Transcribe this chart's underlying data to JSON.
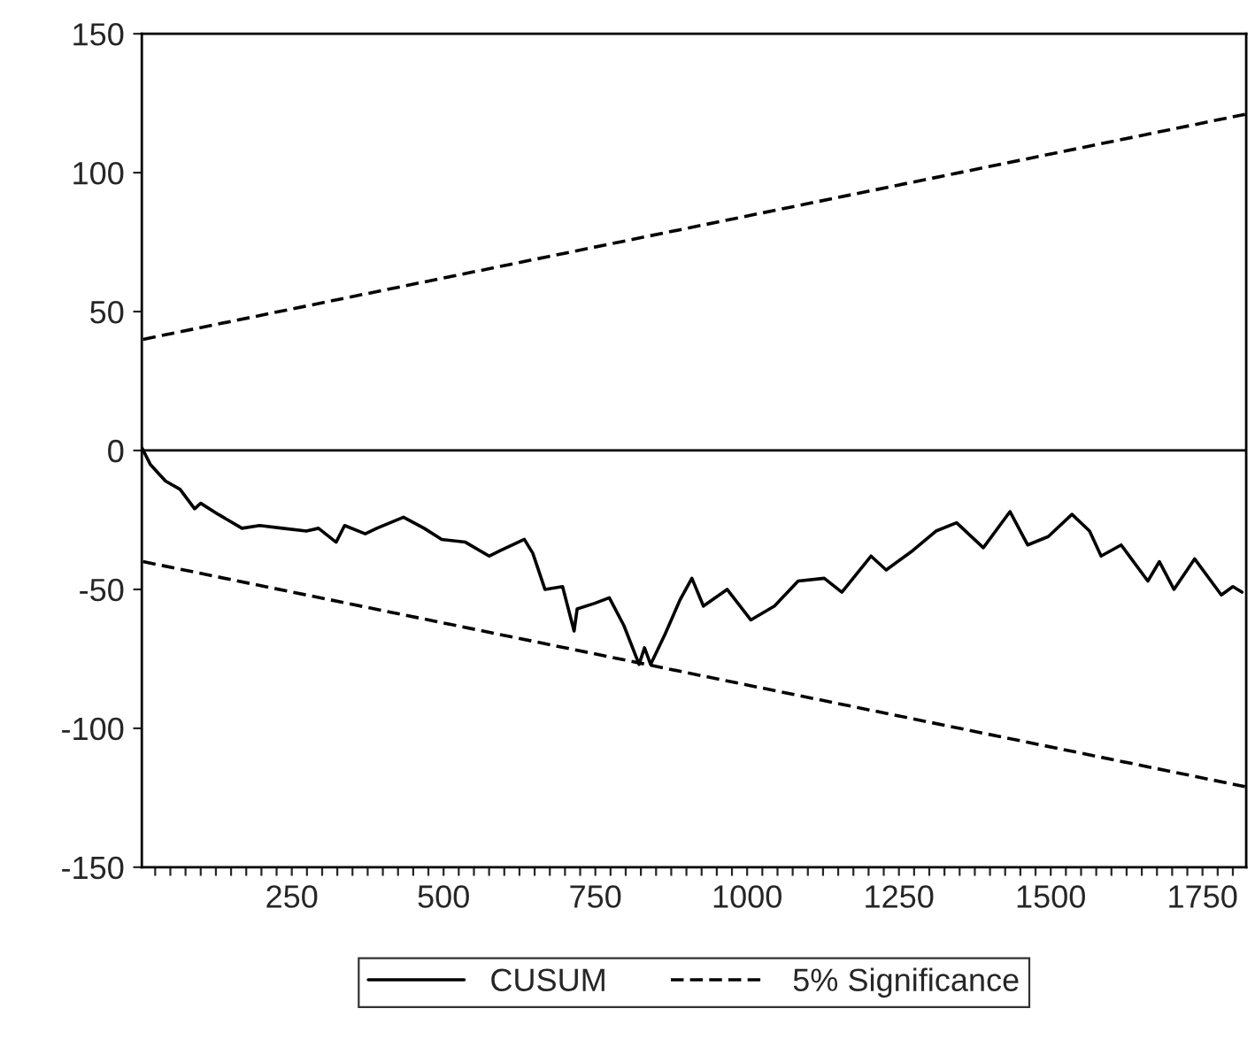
{
  "chart_data": {
    "type": "line",
    "xlim": [
      3,
      1822
    ],
    "ylim": [
      -150,
      150
    ],
    "yticks": [
      -150,
      -100,
      -50,
      0,
      50,
      100,
      150
    ],
    "xticks": [
      {
        "value": 25,
        "label": null
      },
      {
        "value": 50,
        "label": null
      },
      {
        "value": 75,
        "label": null
      },
      {
        "value": 100,
        "label": null
      },
      {
        "value": 125,
        "label": null
      },
      {
        "value": 150,
        "label": null
      },
      {
        "value": 175,
        "label": null
      },
      {
        "value": 200,
        "label": null
      },
      {
        "value": 225,
        "label": null
      },
      250,
      {
        "value": 275,
        "label": null
      },
      {
        "value": 300,
        "label": null
      },
      {
        "value": 325,
        "label": null
      },
      {
        "value": 350,
        "label": null
      },
      {
        "value": 375,
        "label": null
      },
      {
        "value": 400,
        "label": null
      },
      {
        "value": 425,
        "label": null
      },
      {
        "value": 450,
        "label": null
      },
      {
        "value": 475,
        "label": null
      },
      500,
      {
        "value": 525,
        "label": null
      },
      {
        "value": 550,
        "label": null
      },
      {
        "value": 575,
        "label": null
      },
      {
        "value": 600,
        "label": null
      },
      {
        "value": 625,
        "label": null
      },
      {
        "value": 650,
        "label": null
      },
      {
        "value": 675,
        "label": null
      },
      {
        "value": 700,
        "label": null
      },
      {
        "value": 725,
        "label": null
      },
      750,
      {
        "value": 775,
        "label": null
      },
      {
        "value": 800,
        "label": null
      },
      {
        "value": 825,
        "label": null
      },
      {
        "value": 850,
        "label": null
      },
      {
        "value": 875,
        "label": null
      },
      {
        "value": 900,
        "label": null
      },
      {
        "value": 925,
        "label": null
      },
      {
        "value": 950,
        "label": null
      },
      {
        "value": 975,
        "label": null
      },
      1000,
      {
        "value": 1025,
        "label": null
      },
      {
        "value": 1050,
        "label": null
      },
      {
        "value": 1075,
        "label": null
      },
      {
        "value": 1100,
        "label": null
      },
      {
        "value": 1125,
        "label": null
      },
      {
        "value": 1150,
        "label": null
      },
      {
        "value": 1175,
        "label": null
      },
      {
        "value": 1200,
        "label": null
      },
      {
        "value": 1225,
        "label": null
      },
      1250,
      {
        "value": 1275,
        "label": null
      },
      {
        "value": 1300,
        "label": null
      },
      {
        "value": 1325,
        "label": null
      },
      {
        "value": 1350,
        "label": null
      },
      {
        "value": 1375,
        "label": null
      },
      {
        "value": 1400,
        "label": null
      },
      {
        "value": 1425,
        "label": null
      },
      {
        "value": 1450,
        "label": null
      },
      {
        "value": 1475,
        "label": null
      },
      1500,
      {
        "value": 1525,
        "label": null
      },
      {
        "value": 1550,
        "label": null
      },
      {
        "value": 1575,
        "label": null
      },
      {
        "value": 1600,
        "label": null
      },
      {
        "value": 1625,
        "label": null
      },
      {
        "value": 1650,
        "label": null
      },
      {
        "value": 1675,
        "label": null
      },
      {
        "value": 1700,
        "label": null
      },
      {
        "value": 1725,
        "label": null
      },
      1750,
      {
        "value": 1775,
        "label": null
      },
      {
        "value": 1800,
        "label": null
      }
    ],
    "grid": false,
    "legend": "bottom",
    "ref_lines": [
      {
        "axis": "y",
        "value": 0,
        "color": "#000000",
        "line_style": "solid"
      }
    ],
    "series": [
      {
        "name": "CUSUM",
        "color": "#000000",
        "line_style": "solid",
        "x": [
          3,
          17,
          42,
          66,
          90,
          100,
          129,
          168,
          197,
          235,
          274,
          294,
          323,
          337,
          371,
          390,
          434,
          468,
          497,
          536,
          575,
          594,
          633,
          647,
          667,
          696,
          715,
          720,
          749,
          773,
          797,
          822,
          831,
          841,
          865,
          889,
          909,
          928,
          967,
          1006,
          1045,
          1084,
          1127,
          1156,
          1204,
          1229,
          1273,
          1311,
          1345,
          1389,
          1433,
          1462,
          1496,
          1535,
          1564,
          1583,
          1616,
          1660,
          1679,
          1703,
          1737,
          1781,
          1800,
          1815
        ],
        "values": [
          1,
          -5,
          -11,
          -14,
          -21,
          -19,
          -23,
          -28,
          -27,
          -28,
          -29,
          -28,
          -33,
          -27,
          -30,
          -28,
          -24,
          -28,
          -32,
          -33,
          -38,
          -36,
          -32,
          -37,
          -50,
          -49,
          -65,
          -57,
          -55,
          -53,
          -63,
          -77,
          -71,
          -77,
          -66,
          -54,
          -46,
          -56,
          -50,
          -61,
          -56,
          -47,
          -46,
          -51,
          -38,
          -43,
          -36,
          -29,
          -26,
          -35,
          -22,
          -34,
          -31,
          -23,
          -29,
          -38,
          -34,
          -47,
          -40,
          -50,
          -39,
          -52,
          -49,
          -51
        ]
      },
      {
        "name": "5% Significance",
        "color": "#000000",
        "line_style": "dashed",
        "x": [
          5,
          1820
        ],
        "values": [
          40,
          121
        ]
      },
      {
        "color": "#000000",
        "line_style": "dashed",
        "x": [
          5,
          1820
        ],
        "values": [
          -40,
          -121
        ]
      }
    ]
  }
}
